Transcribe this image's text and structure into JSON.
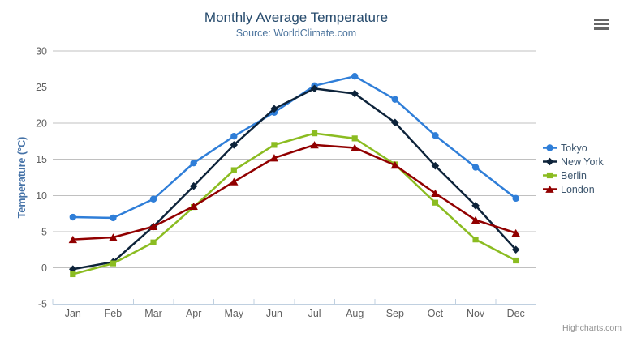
{
  "chart_data": {
    "type": "line",
    "title": "Monthly Average Temperature",
    "subtitle": "Source: WorldClimate.com",
    "xlabel": "",
    "ylabel": "Temperature (°C)",
    "ylim": [
      -5,
      30
    ],
    "y_ticks": [
      30,
      25,
      20,
      15,
      10,
      5,
      0,
      -5
    ],
    "grid": true,
    "legend_position": "right",
    "categories": [
      "Jan",
      "Feb",
      "Mar",
      "Apr",
      "May",
      "Jun",
      "Jul",
      "Aug",
      "Sep",
      "Oct",
      "Nov",
      "Dec"
    ],
    "series": [
      {
        "name": "Tokyo",
        "color": "#2f7ed8",
        "marker": "circle",
        "values": [
          7.0,
          6.9,
          9.5,
          14.5,
          18.2,
          21.5,
          25.2,
          26.5,
          23.3,
          18.3,
          13.9,
          9.6
        ]
      },
      {
        "name": "New York",
        "color": "#0d233a",
        "marker": "diamond",
        "values": [
          -0.2,
          0.8,
          5.7,
          11.3,
          17.0,
          22.0,
          24.8,
          24.1,
          20.1,
          14.1,
          8.6,
          2.5
        ]
      },
      {
        "name": "Berlin",
        "color": "#8bbc21",
        "marker": "square",
        "values": [
          -0.9,
          0.6,
          3.5,
          8.4,
          13.5,
          17.0,
          18.6,
          17.9,
          14.3,
          9.0,
          3.9,
          1.0
        ]
      },
      {
        "name": "London",
        "color": "#910000",
        "marker": "triangle",
        "values": [
          3.9,
          4.2,
          5.7,
          8.5,
          11.9,
          15.2,
          17.0,
          16.6,
          14.2,
          10.3,
          6.6,
          4.8
        ]
      }
    ]
  },
  "ui": {
    "credits": "Highcharts.com",
    "colors": {
      "title": "#274b6d",
      "subtitle": "#4d759e",
      "axis_title": "#4572a7",
      "axis_labels": "#606060",
      "gridline": "#c0c0c0",
      "axis_line": "#c0d0e0",
      "legend_text": "#3e576f",
      "credits_text": "#909090",
      "menu_icon": "#666666"
    }
  }
}
